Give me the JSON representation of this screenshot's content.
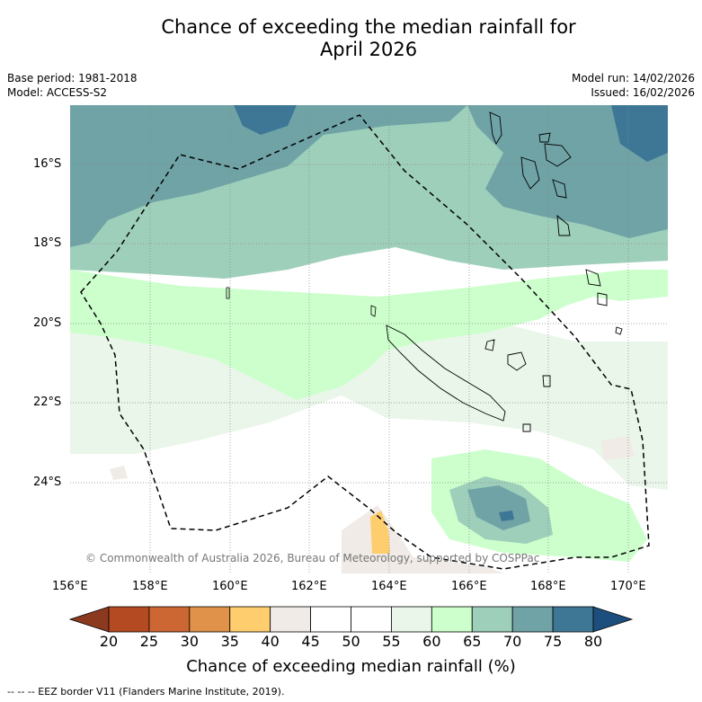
{
  "title_line1": "Chance of exceeding the median rainfall for",
  "title_line2": "April 2026",
  "meta": {
    "base_period": "Base period: 1981-2018",
    "model": "Model: ACCESS-S2",
    "model_run": "Model run: 14/02/2026",
    "issued": "Issued: 16/02/2026"
  },
  "map": {
    "lat_labels": [
      "16°S",
      "18°S",
      "20°S",
      "22°S",
      "24°S"
    ],
    "lon_labels": [
      "156°E",
      "158°E",
      "160°E",
      "162°E",
      "164°E",
      "166°E",
      "168°E",
      "170°E"
    ],
    "copyright": "© Commonwealth of Australia 2026, Bureau of Meteorology, supported by COSPPac"
  },
  "colorbar": {
    "ticks": [
      "20",
      "25",
      "30",
      "35",
      "40",
      "45",
      "50",
      "55",
      "60",
      "65",
      "70",
      "75",
      "80"
    ],
    "colors": [
      "#8b3a1f",
      "#b34a22",
      "#cc6633",
      "#e0914a",
      "#fecd6e",
      "#f0ebe6",
      "#ffffff",
      "#ffffff",
      "#eaf6ea",
      "#ccffcc",
      "#9ecfba",
      "#6fa3a6",
      "#3e7796",
      "#1c4f7d"
    ],
    "label": "Chance of exceeding median rainfall (%)"
  },
  "footnote": "--  --  -- EEZ border V11 (Flanders Marine Institute, 2019)."
}
